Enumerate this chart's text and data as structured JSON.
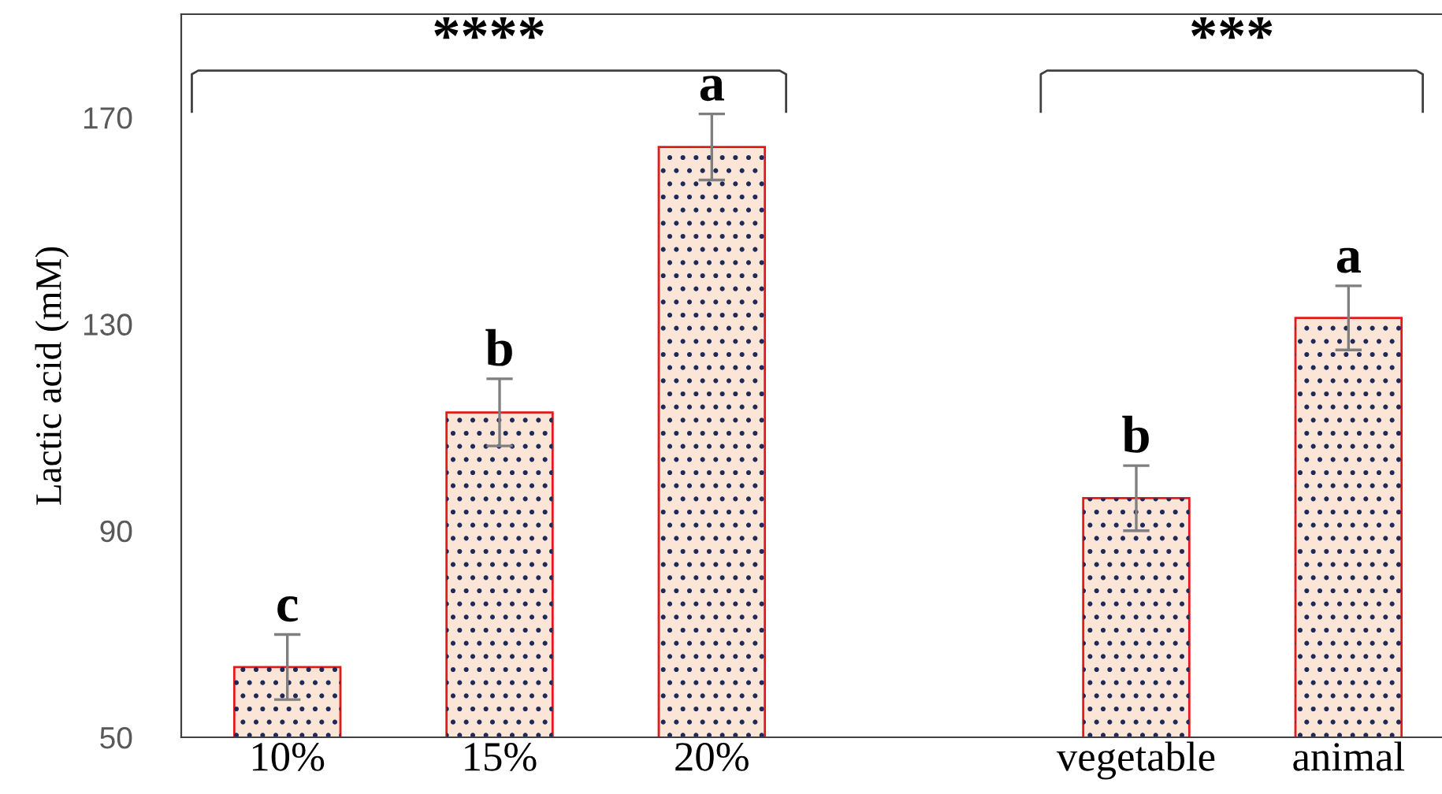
{
  "chart_data": {
    "type": "bar",
    "ylabel": "Lactic acid (mM)",
    "categories": [
      "10%",
      "15%",
      "20%",
      null,
      "vegetable",
      "animal"
    ],
    "values": [
      63.6,
      112.9,
      164.3,
      null,
      96.3,
      131.2
    ],
    "errors": [
      6.3,
      6.5,
      6.4,
      null,
      6.3,
      6.2
    ],
    "color": "#fbe5d6",
    "ylim": [
      50,
      190
    ],
    "yticks": [
      50,
      90,
      130,
      170
    ],
    "grid": false,
    "annotations": [
      "****",
      "***",
      {
        "text": "c",
        "x": "10%",
        "y": 69.9
      },
      {
        "text": "b",
        "x": "15%",
        "y": 119.4
      },
      {
        "text": "a",
        "x": "20%",
        "y": 170.7
      },
      {
        "text": "b",
        "x": "vegetable",
        "y": 102.6
      },
      {
        "text": "a",
        "x": "animal",
        "y": 137.4
      }
    ]
  }
}
